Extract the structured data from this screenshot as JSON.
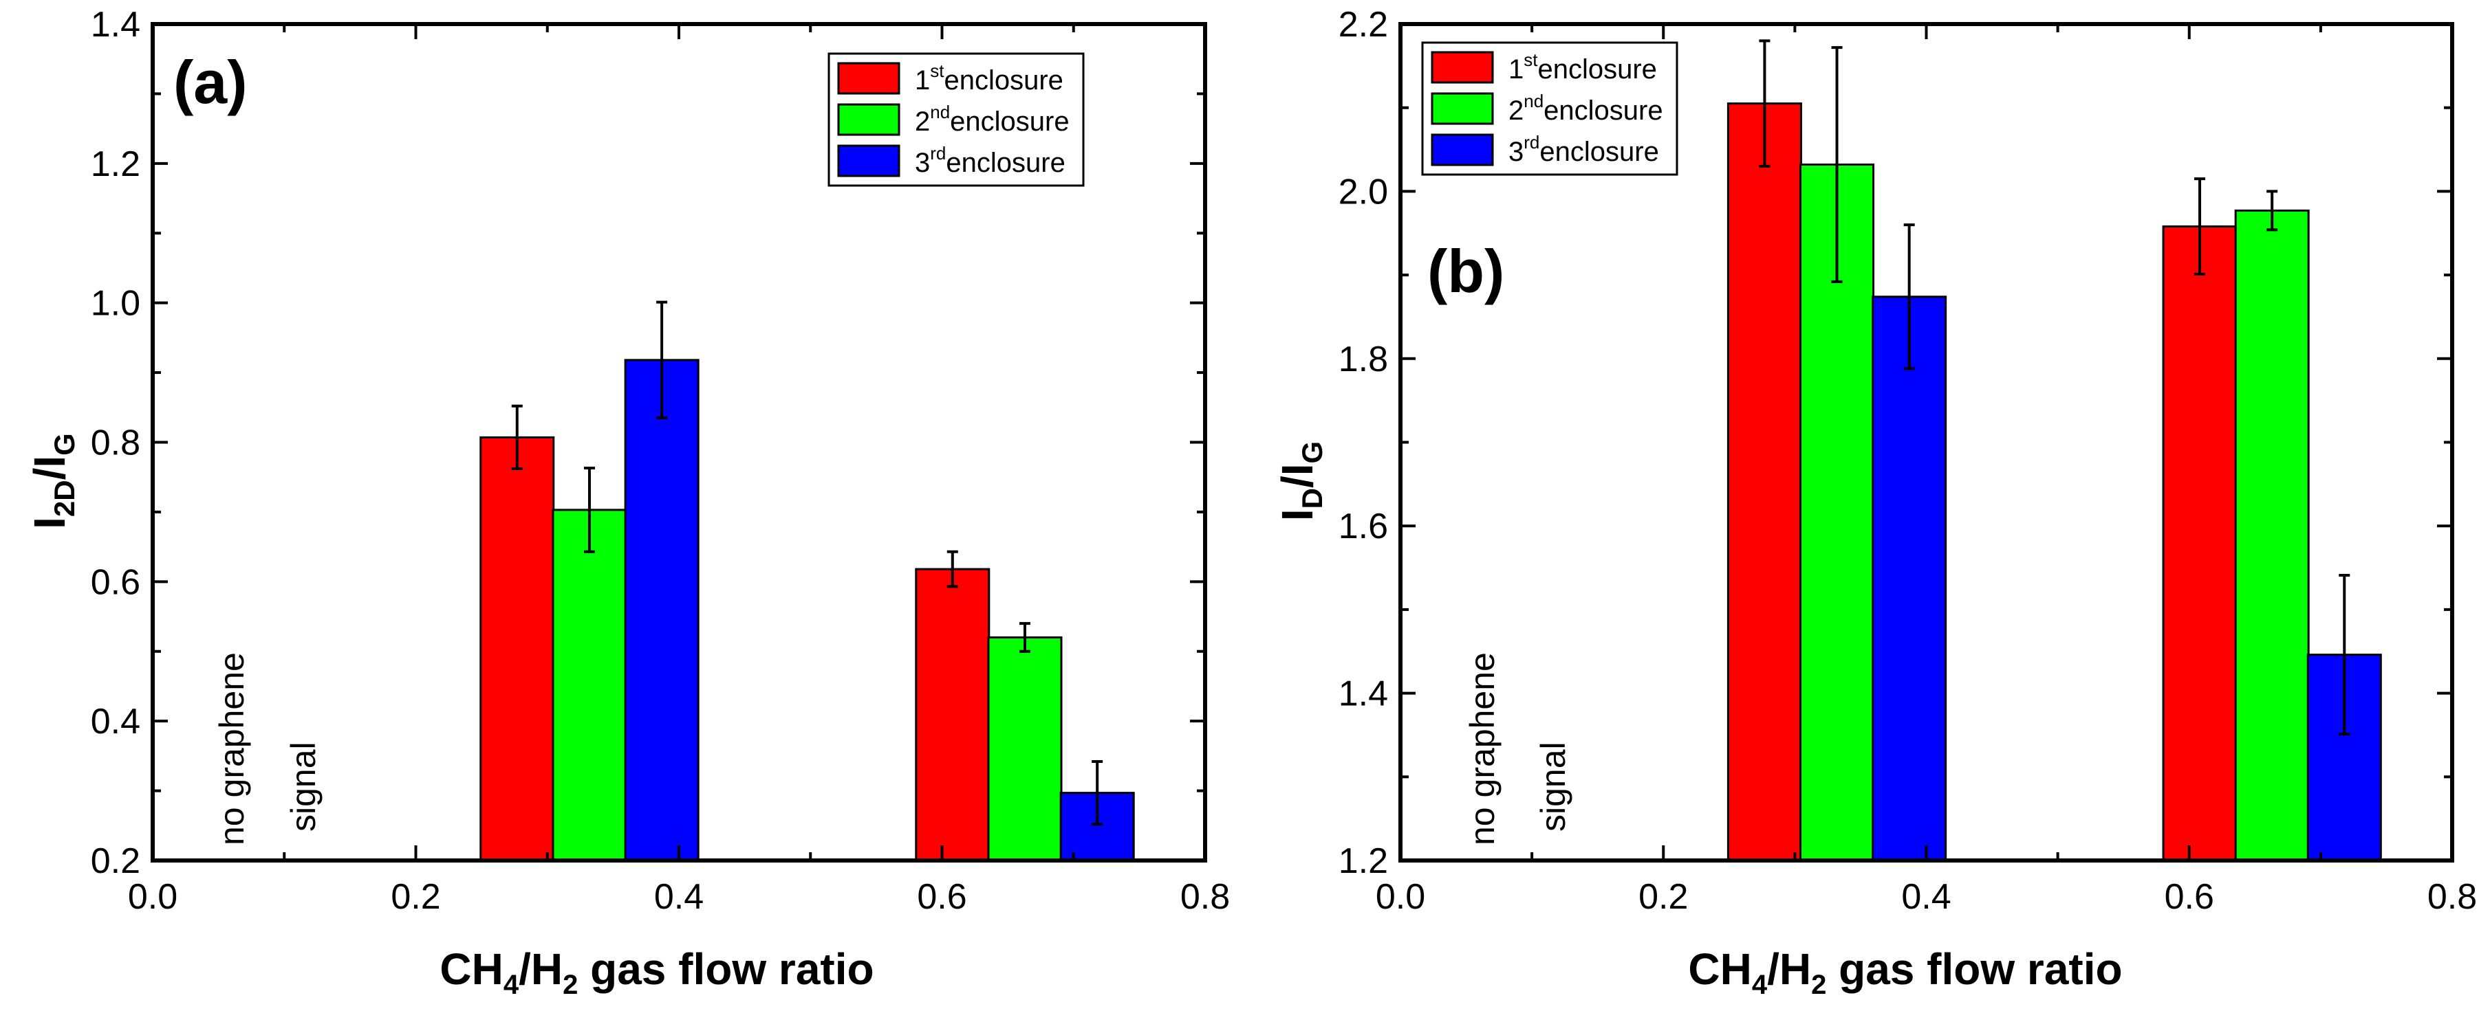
{
  "chart_data": [
    {
      "type": "bar",
      "panel_label": "(a)",
      "xlabel": "CH4/H2 gas flow ratio",
      "ylabel": "I2D/IG",
      "xlim": [
        0.0,
        0.8
      ],
      "ylim": [
        0.2,
        1.4
      ],
      "xticks": [
        "0.0",
        "0.2",
        "0.4",
        "0.6",
        "0.8"
      ],
      "yticks": [
        "0.2",
        "0.4",
        "0.6",
        "0.8",
        "1.0",
        "1.2",
        "1.4"
      ],
      "categories": [
        "0.2",
        "0.4",
        "0.6",
        "0.8"
      ],
      "series": [
        {
          "name": "1st enclosure",
          "color": "#ff0000",
          "x": [
            0.277,
            0.608
          ],
          "values": [
            0.807,
            0.618
          ],
          "errors": [
            0.045,
            0.025
          ]
        },
        {
          "name": "2nd enclosure",
          "color": "#00ff00",
          "x": [
            0.332,
            0.663
          ],
          "values": [
            0.703,
            0.52
          ],
          "errors": [
            0.06,
            0.02
          ]
        },
        {
          "name": "3rd enclosure",
          "color": "#0000ff",
          "x": [
            0.387,
            0.718
          ],
          "values": [
            0.918,
            0.297
          ],
          "errors": [
            0.083,
            0.045
          ]
        }
      ],
      "annotation": {
        "line1": "no graphene",
        "line2": "signal"
      },
      "legend": [
        {
          "base": "1",
          "sup": "st",
          "label": "enclosure"
        },
        {
          "base": "2",
          "sup": "nd",
          "label": "enclosure"
        },
        {
          "base": "3",
          "sup": "rd",
          "label": "enclosure"
        }
      ],
      "legend_position": "top-right"
    },
    {
      "type": "bar",
      "panel_label": "(b)",
      "xlabel": "CH4/H2 gas flow ratio",
      "ylabel": "ID/IG",
      "xlim": [
        0.0,
        0.8
      ],
      "ylim": [
        1.2,
        2.2
      ],
      "xticks": [
        "0.0",
        "0.2",
        "0.4",
        "0.6",
        "0.8"
      ],
      "yticks": [
        "1.2",
        "1.4",
        "1.6",
        "1.8",
        "2.0",
        "2.2"
      ],
      "categories": [
        "0.2",
        "0.4",
        "0.6",
        "0.8"
      ],
      "series": [
        {
          "name": "1st enclosure",
          "color": "#ff0000",
          "x": [
            0.277,
            0.608
          ],
          "values": [
            2.105,
            1.958
          ],
          "errors": [
            0.075,
            0.057
          ]
        },
        {
          "name": "2nd enclosure",
          "color": "#00ff00",
          "x": [
            0.332,
            0.663
          ],
          "values": [
            2.032,
            1.977
          ],
          "errors": [
            0.14,
            0.023
          ]
        },
        {
          "name": "3rd enclosure",
          "color": "#0000ff",
          "x": [
            0.387,
            0.718
          ],
          "values": [
            1.874,
            1.446
          ],
          "errors": [
            0.086,
            0.095
          ]
        }
      ],
      "annotation": {
        "line1": "no graphene",
        "line2": "signal"
      },
      "legend": [
        {
          "base": "1",
          "sup": "st",
          "label": "enclosure"
        },
        {
          "base": "2",
          "sup": "nd",
          "label": "enclosure"
        },
        {
          "base": "3",
          "sup": "rd",
          "label": "enclosure"
        }
      ],
      "legend_position": "top-left"
    }
  ]
}
